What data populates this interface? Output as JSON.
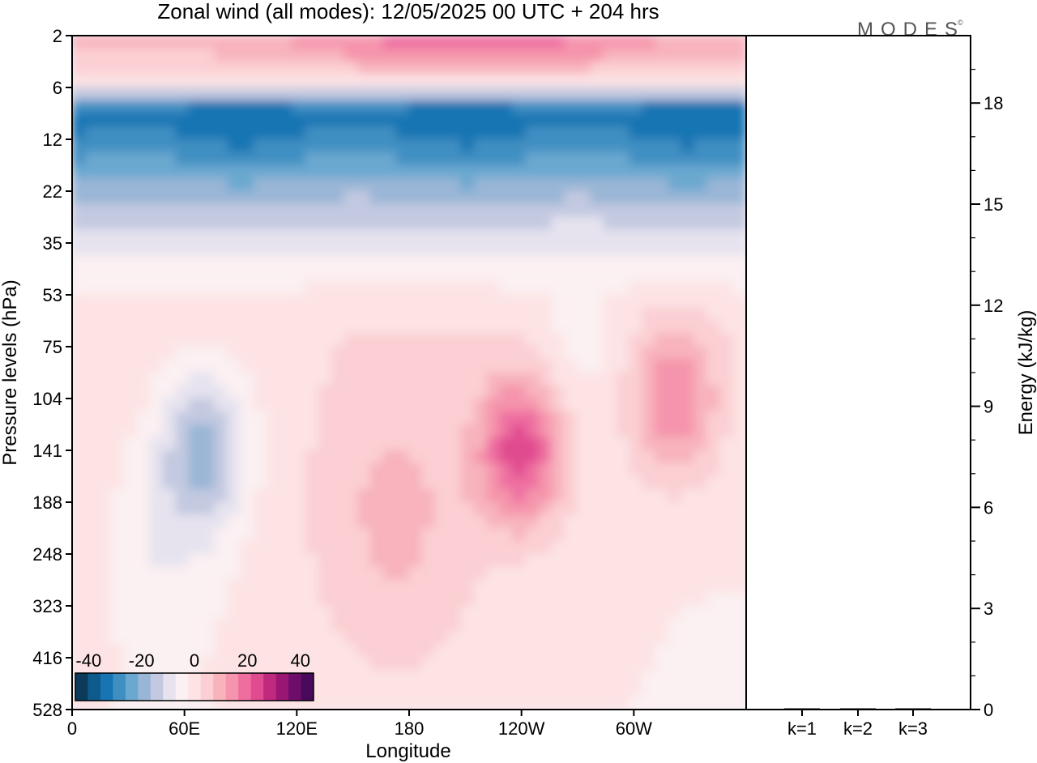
{
  "title": "Zonal wind (all modes):  12/05/2025  00 UTC  + 204 hrs",
  "logo": "MODES",
  "colors": {
    "cmap": [
      "#0b3a5a",
      "#0d5b8c",
      "#1874b2",
      "#3f8fc2",
      "#6aa8d0",
      "#9ab6d6",
      "#c3c9e0",
      "#e6e3ef",
      "#fbf0f2",
      "#fde3e4",
      "#fbcfd3",
      "#f8b3bd",
      "#f594ac",
      "#ee6ea0",
      "#e04b8f",
      "#c02a7e",
      "#9a1673",
      "#6e0d6b",
      "#4a0a5c"
    ]
  },
  "chart_data": [
    {
      "type": "heatmap",
      "name": "zonal-wind-cross-section",
      "xlabel": "Longitude",
      "ylabel": "Pressure levels (hPa)",
      "xticks": [
        "0",
        "60E",
        "120E",
        "180",
        "120W",
        "60W"
      ],
      "yticks": [
        "2",
        "6",
        "12",
        "22",
        "35",
        "53",
        "75",
        "104",
        "141",
        "188",
        "248",
        "323",
        "416",
        "528"
      ],
      "xlim": [
        0,
        360
      ],
      "colorbar": {
        "ticks": [
          "-40",
          "-20",
          "0",
          "20",
          "40"
        ],
        "range": [
          -45,
          45
        ],
        "step": 5
      },
      "features": [
        {
          "level_hPa": 2,
          "lon": 200,
          "value": 22
        },
        {
          "level_hPa": 9,
          "lon": 60,
          "value": -37
        },
        {
          "level_hPa": 9,
          "lon": 330,
          "value": -33
        },
        {
          "level_hPa": 18,
          "lon": 60,
          "value": -28
        },
        {
          "level_hPa": 141,
          "lon": 70,
          "value": -17
        },
        {
          "level_hPa": 141,
          "lon": 240,
          "value": 27
        },
        {
          "level_hPa": 104,
          "lon": 322,
          "value": 20
        },
        {
          "level_hPa": 75,
          "lon": 270,
          "value": -2
        }
      ]
    },
    {
      "type": "bar",
      "name": "energy-by-wavenumber",
      "ylabel": "Energy (kJ/kg)",
      "categories": [
        "k=1",
        "k=2",
        "k=3"
      ],
      "values": [
        0.02,
        0.01,
        0.01
      ],
      "yticks": [
        "0",
        "3",
        "6",
        "9",
        "12",
        "15",
        "18"
      ],
      "ylim": [
        0,
        20
      ]
    }
  ]
}
